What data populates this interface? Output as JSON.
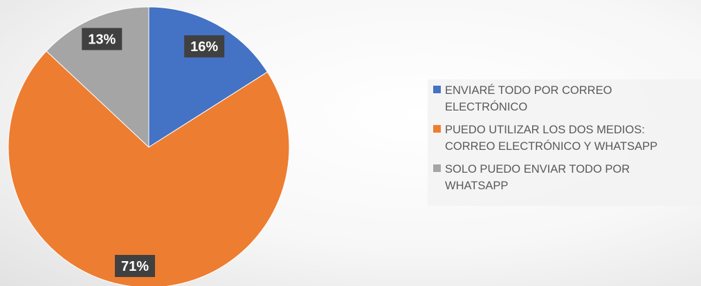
{
  "chart_data": {
    "type": "pie",
    "categories": [
      "ENVIARÉ TODO POR CORREO ELECTRÓNICO",
      "PUEDO UTILIZAR LOS DOS MEDIOS: CORREO ELECTRÓNICO Y WHATSAPP",
      "SOLO PUEDO ENVIAR TODO POR WHATSAPP"
    ],
    "values": [
      16,
      71,
      13
    ],
    "data_labels": [
      "16%",
      "71%",
      "13%"
    ],
    "colors": [
      "#4472C4",
      "#ED7D31",
      "#A5A5A5"
    ],
    "title": "",
    "legend_position": "right",
    "start_angle": "top, clockwise"
  }
}
